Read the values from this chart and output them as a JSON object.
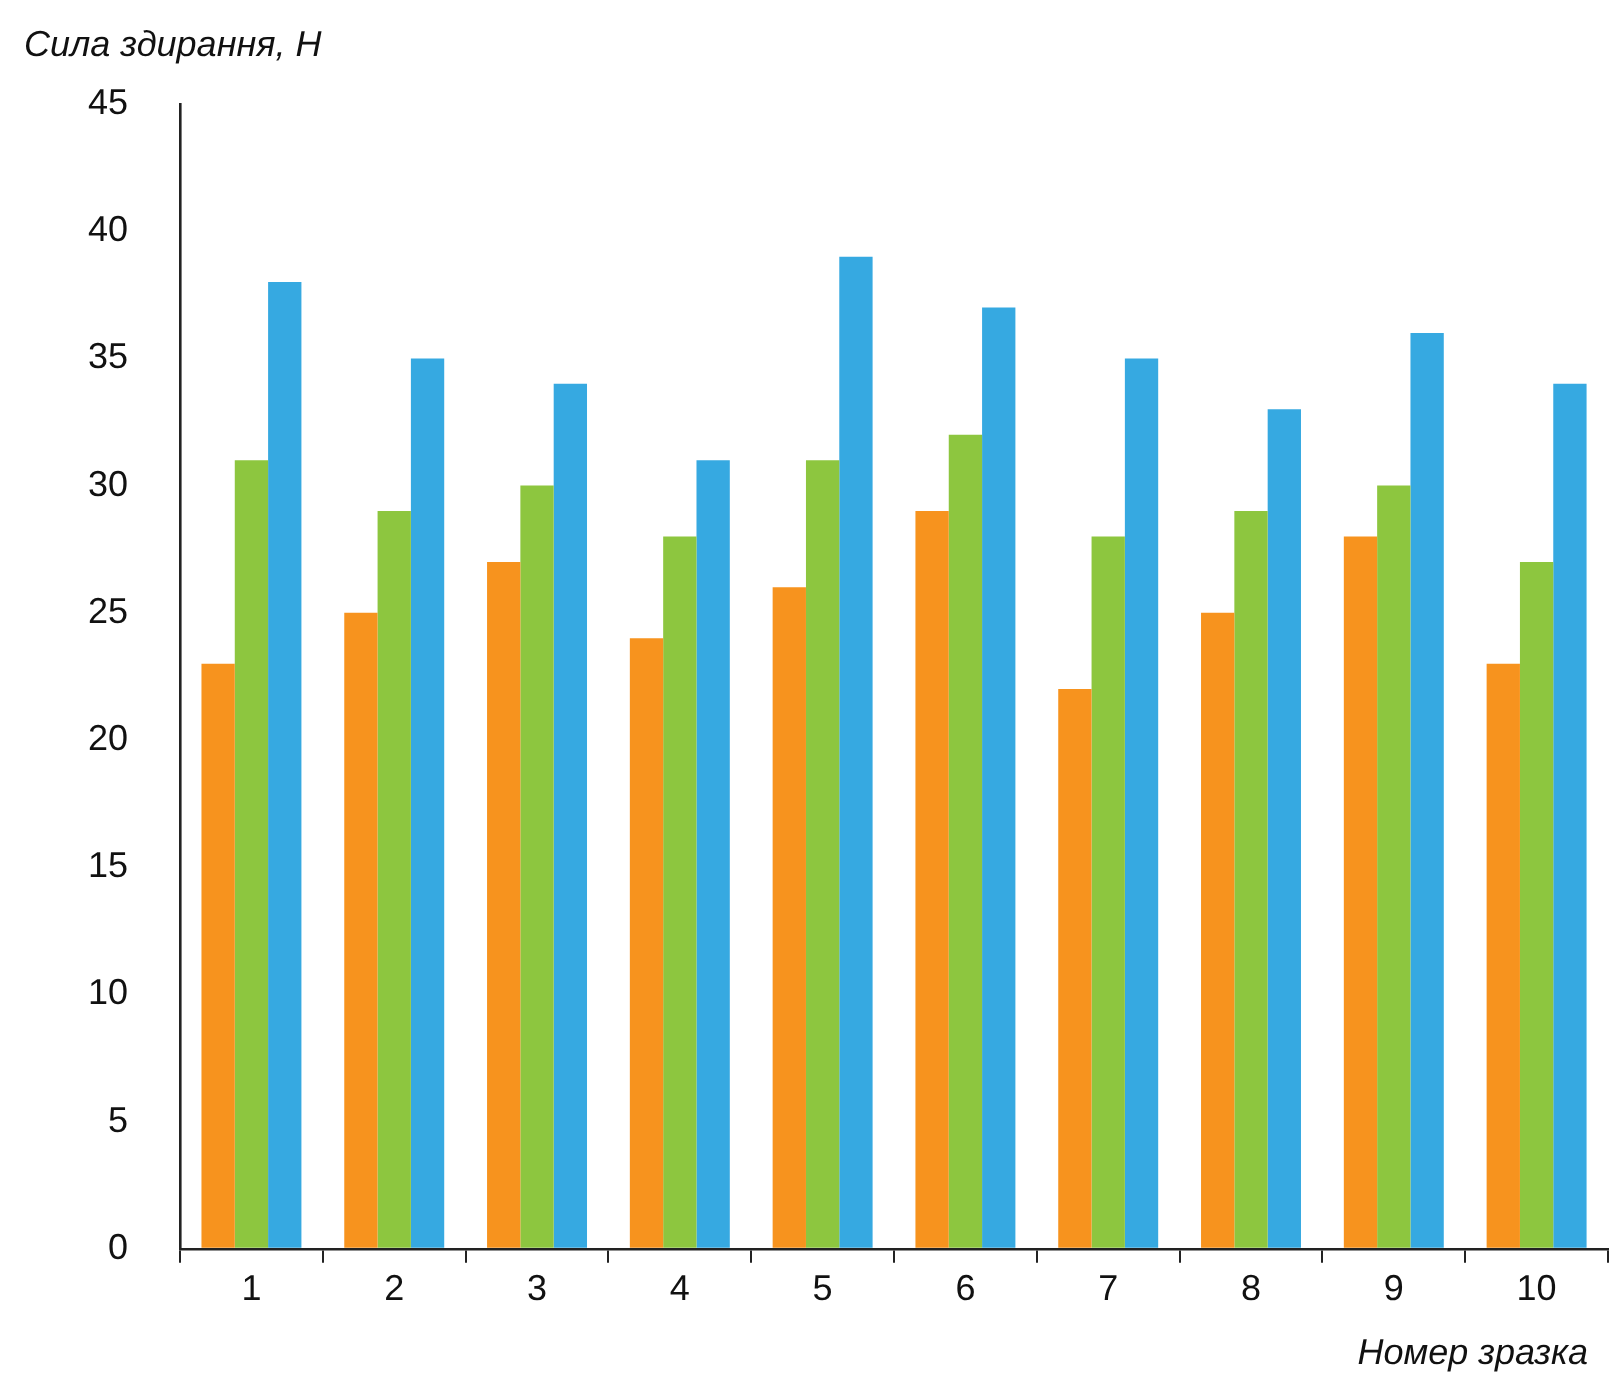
{
  "chart_data": {
    "type": "bar",
    "xlabel": "Номер зразка",
    "ylabel": "Сила здирання, Н",
    "categories": [
      "1",
      "2",
      "3",
      "4",
      "5",
      "6",
      "7",
      "8",
      "9",
      "10"
    ],
    "series": [
      {
        "color": "#f7931e",
        "values": [
          23,
          25,
          27,
          24,
          26,
          29,
          22,
          25,
          28,
          23
        ]
      },
      {
        "color": "#8dc63f",
        "values": [
          31,
          29,
          30,
          28,
          31,
          32,
          28,
          29,
          30,
          27
        ]
      },
      {
        "color": "#36a9e1",
        "values": [
          38,
          35,
          34,
          31,
          39,
          37,
          35,
          33,
          36,
          34
        ]
      }
    ],
    "ylim": [
      0,
      45
    ],
    "yticks": [
      0,
      5,
      10,
      15,
      20,
      25,
      30,
      35,
      40,
      45
    ]
  }
}
